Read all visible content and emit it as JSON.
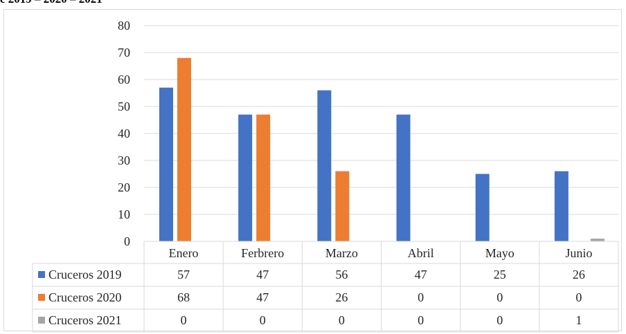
{
  "title_fragment": "e 2019 – 2020 – 2021",
  "chart_data": {
    "type": "bar",
    "categories": [
      "Enero",
      "Ferbrero",
      "Marzo",
      "Abril",
      "Mayo",
      "Junio"
    ],
    "series": [
      {
        "name": "Cruceros 2019",
        "color": "#4472c4",
        "values": [
          57,
          47,
          56,
          47,
          25,
          26
        ]
      },
      {
        "name": "Cruceros 2020",
        "color": "#ed7d31",
        "values": [
          68,
          47,
          26,
          0,
          0,
          0
        ]
      },
      {
        "name": "Cruceros 2021",
        "color": "#a5a5a5",
        "values": [
          0,
          0,
          0,
          0,
          0,
          1
        ]
      }
    ],
    "ylim": [
      0,
      80
    ],
    "yticks": [
      0,
      10,
      20,
      30,
      40,
      50,
      60,
      70,
      80
    ],
    "grid": true,
    "legend": "data-table-below"
  }
}
